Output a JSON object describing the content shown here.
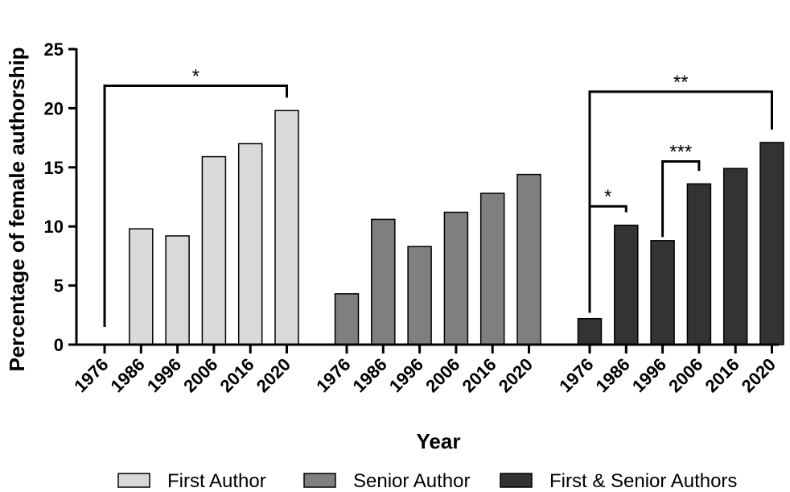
{
  "chart_data": {
    "type": "bar",
    "title": "",
    "xlabel": "Year",
    "ylabel": "Percentage of female authorship",
    "ylim": [
      0,
      25
    ],
    "yticks": [
      "0",
      "5",
      "10",
      "15",
      "20",
      "25"
    ],
    "categories": [
      "1976",
      "1986",
      "1996",
      "2006",
      "2016",
      "2020"
    ],
    "legend_position": "bottom",
    "grid": false,
    "series": [
      {
        "name": "First Author",
        "color": "#d9d9d9",
        "values": [
          0,
          9.8,
          9.2,
          15.9,
          17.0,
          19.8
        ]
      },
      {
        "name": "Senior Author",
        "color": "#7f7f7f",
        "values": [
          4.3,
          10.6,
          8.3,
          11.2,
          12.8,
          14.4
        ]
      },
      {
        "name": "First & Senior Authors",
        "color": "#333333",
        "values": [
          2.2,
          10.1,
          8.8,
          13.6,
          14.9,
          17.1
        ]
      }
    ],
    "significance": [
      {
        "series": 0,
        "from": "1976",
        "to": "2020",
        "label": "*"
      },
      {
        "series": 2,
        "from": "1976",
        "to": "2020",
        "label": "**"
      },
      {
        "series": 2,
        "from": "1976",
        "to": "1986",
        "label": "*"
      },
      {
        "series": 2,
        "from": "1996",
        "to": "2006",
        "label": "***"
      }
    ]
  }
}
